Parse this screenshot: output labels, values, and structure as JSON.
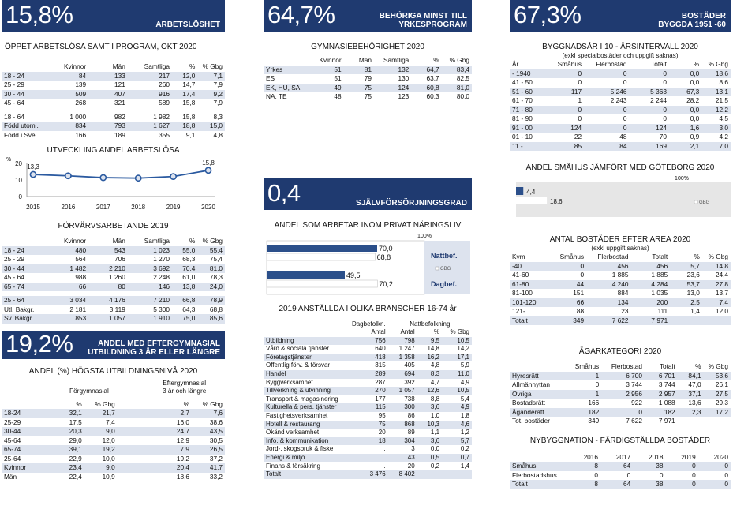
{
  "col1": {
    "b1": {
      "big": "15,8%",
      "label": "ARBETSLÖSHET"
    },
    "t1": {
      "title": "ÖPPET ARBETSLÖSA SAMT I PROGRAM, OKT 2020",
      "headers": [
        "",
        "Kvinnor",
        "Män",
        "Samtliga",
        "%",
        "% Gbg"
      ],
      "rows": [
        [
          "18 - 24",
          "84",
          "133",
          "217",
          "12,0",
          "7,1"
        ],
        [
          "25 - 29",
          "139",
          "121",
          "260",
          "14,7",
          "7,9"
        ],
        [
          "30 - 44",
          "509",
          "407",
          "916",
          "17,4",
          "9,2"
        ],
        [
          "45 - 64",
          "268",
          "321",
          "589",
          "15,8",
          "7,9"
        ]
      ],
      "rows2": [
        [
          "18 - 64",
          "1 000",
          "982",
          "1 982",
          "15,8",
          "8,3"
        ],
        [
          "Född utoml.",
          "834",
          "793",
          "1 627",
          "18,8",
          "15,0"
        ],
        [
          "Född i Sve.",
          "166",
          "189",
          "355",
          "9,1",
          "4,8"
        ]
      ]
    },
    "line": {
      "title": "UTVECKLING ANDEL ARBETSLÖSA",
      "ylabel": "%",
      "yticks": [
        "20",
        "10",
        "0"
      ],
      "first_label": "13,3",
      "last_label": "15,8"
    },
    "t2": {
      "title": "FÖRVÄRVSARBETANDE 2019",
      "headers": [
        "",
        "Kvinnor",
        "Män",
        "Samtliga",
        "%",
        "% Gbg"
      ],
      "rows": [
        [
          "18 - 24",
          "480",
          "543",
          "1 023",
          "55,0",
          "55,4"
        ],
        [
          "25 - 29",
          "564",
          "706",
          "1 270",
          "68,3",
          "75,4"
        ],
        [
          "30 - 44",
          "1 482",
          "2 210",
          "3 692",
          "70,4",
          "81,0"
        ],
        [
          "45 - 64",
          "988",
          "1 260",
          "2 248",
          "61,0",
          "78,3"
        ],
        [
          "65 - 74",
          "66",
          "80",
          "146",
          "13,8",
          "24,0"
        ]
      ],
      "rows2": [
        [
          "25 - 64",
          "3 034",
          "4 176",
          "7 210",
          "66,8",
          "78,9"
        ],
        [
          "Utl. Bakgr.",
          "2 181",
          "3 119",
          "5 300",
          "64,3",
          "68,8"
        ],
        [
          "Sv. Bakgr.",
          "853",
          "1 057",
          "1 910",
          "75,0",
          "85,6"
        ]
      ]
    },
    "b2": {
      "big": "19,2%",
      "label1": "ANDEL MED EFTERGYMNASIAL",
      "label2": "UTBILDNING 3 ÅR ELLER LÄNGRE"
    },
    "t3": {
      "title": "ANDEL (%) HÖGSTA UTBILDNINGSNIVÅ 2020",
      "group1": "Förgymnasial",
      "group2a": "Eftergymnasial",
      "group2b": "3 år och längre",
      "headers": [
        "",
        "%",
        "% Gbg",
        "",
        "%",
        "% Gbg"
      ],
      "rows": [
        [
          "18-24",
          "32,1",
          "21,7",
          "2,7",
          "7,6"
        ],
        [
          "25-29",
          "17,5",
          "7,4",
          "16,0",
          "38,6"
        ],
        [
          "30-44",
          "20,3",
          "9,0",
          "24,7",
          "43,5"
        ],
        [
          "45-64",
          "29,0",
          "12,0",
          "12,9",
          "30,5"
        ],
        [
          "65-74",
          "39,1",
          "19,2",
          "7,9",
          "26,5"
        ],
        [
          "25-64",
          "22,9",
          "10,0",
          "19,2",
          "37,2"
        ],
        [
          "Kvinnor",
          "23,4",
          "9,0",
          "20,4",
          "41,7"
        ],
        [
          "Män",
          "22,4",
          "10,9",
          "18,6",
          "33,2"
        ]
      ]
    }
  },
  "col2": {
    "b1": {
      "big": "64,7%",
      "label1": "BEHÖRIGA MINST TILL",
      "label2": "YRKESPROGRAM"
    },
    "t1": {
      "title": "GYMNASIEBEHÖRIGHET 2020",
      "headers": [
        "",
        "Kvinnor",
        "Män",
        "Samtliga",
        "%",
        "% Gbg"
      ],
      "rows": [
        [
          "Yrkes",
          "51",
          "81",
          "132",
          "64,7",
          "83,4"
        ],
        [
          "ES",
          "51",
          "79",
          "130",
          "63,7",
          "82,5"
        ],
        [
          "EK, HU, SA",
          "49",
          "75",
          "124",
          "60,8",
          "81,0"
        ],
        [
          "NA, TE",
          "48",
          "75",
          "123",
          "60,3",
          "80,0"
        ]
      ]
    },
    "b2": {
      "big": "0,4",
      "label": "SJÄLVFÖRSÖRJNINGSGRAD"
    },
    "bars": {
      "title": "ANDEL SOM ARBETAR INOM PRIVAT NÄRINGSLIV",
      "pct100": "100%",
      "natt_label": "Nattbef.",
      "dag_label": "Dagbef.",
      "gbg": "GBG",
      "natt": {
        "value": 70.0,
        "label": "70,0",
        "gbg_value": 68.8,
        "gbg_label": "68,8"
      },
      "dag": {
        "value": 49.5,
        "label": "49,5",
        "gbg_value": 70.2,
        "gbg_label": "70,2"
      }
    },
    "t2": {
      "title": "2019 ANSTÄLLDA I OLIKA BRANSCHER 16-74 år",
      "h1": [
        "",
        "Dagbefolkn.",
        "Nattbefolkning",
        ""
      ],
      "headers": [
        "",
        "Antal",
        "Antal",
        "%",
        "% Gbg"
      ],
      "rows": [
        [
          "Utbildning",
          "756",
          "798",
          "9,5",
          "10,5"
        ],
        [
          "Vård & sociala tjänster",
          "640",
          "1 247",
          "14,8",
          "14,2"
        ],
        [
          "Företagstjänster",
          "418",
          "1 358",
          "16,2",
          "17,1"
        ],
        [
          "Offentlig förv. & försvar",
          "315",
          "405",
          "4,8",
          "5,9"
        ],
        [
          "Handel",
          "289",
          "694",
          "8,3",
          "11,0"
        ],
        [
          "Byggverksamhet",
          "287",
          "392",
          "4,7",
          "4,9"
        ],
        [
          "Tillverkning & utvinning",
          "270",
          "1 057",
          "12,6",
          "10,5"
        ],
        [
          "Transport & magasinering",
          "177",
          "738",
          "8,8",
          "5,4"
        ],
        [
          "Kulturella & pers. tjänster",
          "115",
          "300",
          "3,6",
          "4,9"
        ],
        [
          "Fastighetsverksamhet",
          "95",
          "86",
          "1,0",
          "1,8"
        ],
        [
          "Hotell & restaurang",
          "75",
          "868",
          "10,3",
          "4,6"
        ],
        [
          "Okänd verksamhet",
          "20",
          "89",
          "1,1",
          "1,2"
        ],
        [
          "Info. & kommunikation",
          "18",
          "304",
          "3,6",
          "5,7"
        ],
        [
          "Jord-, skogsbruk & fiske",
          "..",
          "3",
          "0,0",
          "0,2"
        ],
        [
          "Energi & miljö",
          "..",
          "43",
          "0,5",
          "0,7"
        ],
        [
          "Finans & försäkring",
          "..",
          "20",
          "0,2",
          "1,4"
        ],
        [
          "Totalt",
          "3 476",
          "8 402",
          "",
          ""
        ]
      ]
    }
  },
  "col3": {
    "b1": {
      "big": "67,3%",
      "label1": "BOSTÄDER",
      "label2": "BYGGDA 1951 -60"
    },
    "t1": {
      "title": "BYGGNADSÅR I 10 - ÅRSINTERVALL 2020",
      "sub": "(exkl specialbostäder och uppgift saknas)",
      "headers": [
        "År",
        "Småhus",
        "Flerbostad",
        "Totalt",
        "%",
        "% Gbg"
      ],
      "rows": [
        [
          "- 1940",
          "0",
          "0",
          "0",
          "0,0",
          "18,6"
        ],
        [
          "41 - 50",
          "0",
          "0",
          "0",
          "0,0",
          "8,6"
        ],
        [
          "51 - 60",
          "117",
          "5 246",
          "5 363",
          "67,3",
          "13,1"
        ],
        [
          "61 - 70",
          "1",
          "2 243",
          "2 244",
          "28,2",
          "21,5"
        ],
        [
          "71 - 80",
          "0",
          "0",
          "0",
          "0,0",
          "12,2"
        ],
        [
          "81 - 90",
          "0",
          "0",
          "0",
          "0,0",
          "4,5"
        ],
        [
          "91 - 00",
          "124",
          "0",
          "124",
          "1,6",
          "3,0"
        ],
        [
          "01 - 10",
          "22",
          "48",
          "70",
          "0,9",
          "4,2"
        ],
        [
          "11 -",
          "85",
          "84",
          "169",
          "2,1",
          "7,0"
        ]
      ]
    },
    "bars": {
      "title": "ANDEL SMÅHUS JÄMFÖRT MED GÖTEBORG 2020",
      "pct100": "100%",
      "gbg": "GBG",
      "value": 4.4,
      "label": "4,4",
      "gbg_value": 18.6,
      "gbg_label": "18,6"
    },
    "t2": {
      "title": "ANTAL BOSTÄDER EFTER AREA 2020",
      "sub": "(exkl uppgift saknas)",
      "headers": [
        "Kvm",
        "Småhus",
        "Flerbostad",
        "Totalt",
        "%",
        "% Gbg"
      ],
      "rows": [
        [
          "-40",
          "0",
          "456",
          "456",
          "5,7",
          "14,8"
        ],
        [
          "41-60",
          "0",
          "1 885",
          "1 885",
          "23,6",
          "24,4"
        ],
        [
          "61-80",
          "44",
          "4 240",
          "4 284",
          "53,7",
          "27,8"
        ],
        [
          "81-100",
          "151",
          "884",
          "1 035",
          "13,0",
          "13,7"
        ],
        [
          "101-120",
          "66",
          "134",
          "200",
          "2,5",
          "7,4"
        ],
        [
          "121-",
          "88",
          "23",
          "111",
          "1,4",
          "12,0"
        ],
        [
          "Totalt",
          "349",
          "7 622",
          "7 971",
          "",
          ""
        ]
      ]
    },
    "t3": {
      "title": "ÄGARKATEGORI 2020",
      "headers": [
        "",
        "Småhus",
        "Flerbostad",
        "Totalt",
        "%",
        "% Gbg"
      ],
      "rows": [
        [
          "Hyresrätt",
          "1",
          "6 700",
          "6 701",
          "84,1",
          "53,6"
        ],
        [
          "Allmännyttan",
          "0",
          "3 744",
          "3 744",
          "47,0",
          "26,1"
        ],
        [
          "Övriga",
          "1",
          "2 956",
          "2 957",
          "37,1",
          "27,5"
        ],
        [
          "Bostadsrätt",
          "166",
          "922",
          "1 088",
          "13,6",
          "29,3"
        ],
        [
          "Äganderätt",
          "182",
          "0",
          "182",
          "2,3",
          "17,2"
        ],
        [
          "Tot. bostäder",
          "349",
          "7 622",
          "7 971",
          "",
          ""
        ]
      ]
    },
    "t4": {
      "title": "NYBYGGNATION - FÄRDIGSTÄLLDA BOSTÄDER",
      "headers": [
        "",
        "2016",
        "2017",
        "2018",
        "2019",
        "2020"
      ],
      "rows": [
        [
          "Småhus",
          "8",
          "64",
          "38",
          "0",
          "0"
        ],
        [
          "Flerbostadshus",
          "0",
          "0",
          "0",
          "0",
          "0"
        ],
        [
          "Totalt",
          "8",
          "64",
          "38",
          "0",
          "0"
        ]
      ]
    }
  },
  "chart_data": [
    {
      "type": "line",
      "title": "UTVECKLING ANDEL ARBETSLÖSA",
      "ylabel": "%",
      "x": [
        "2015",
        "2016",
        "2017",
        "2018",
        "2019",
        "2020"
      ],
      "series": [
        {
          "values": [
            13.3,
            12.5,
            11.4,
            11.1,
            12.1,
            15.8
          ]
        }
      ],
      "ylim": [
        0,
        20
      ],
      "yticks": [
        0,
        10,
        20
      ],
      "grid": false
    },
    {
      "type": "bar",
      "title": "ANDEL SOM ARBETAR INOM PRIVAT NÄRINGSLIV",
      "categories": [
        "Nattbef.",
        "Dagbef."
      ],
      "series": [
        {
          "values": [
            70.0,
            49.5
          ]
        },
        {
          "name": "GBG",
          "values": [
            68.8,
            70.2
          ]
        }
      ],
      "ylim": [
        0,
        100
      ]
    },
    {
      "type": "bar",
      "title": "ANDEL SMÅHUS JÄMFÖRT MED GÖTEBORG 2020",
      "categories": [
        ""
      ],
      "series": [
        {
          "values": [
            4.4
          ]
        },
        {
          "name": "GBG",
          "values": [
            18.6
          ]
        }
      ],
      "ylim": [
        0,
        100
      ]
    }
  ]
}
